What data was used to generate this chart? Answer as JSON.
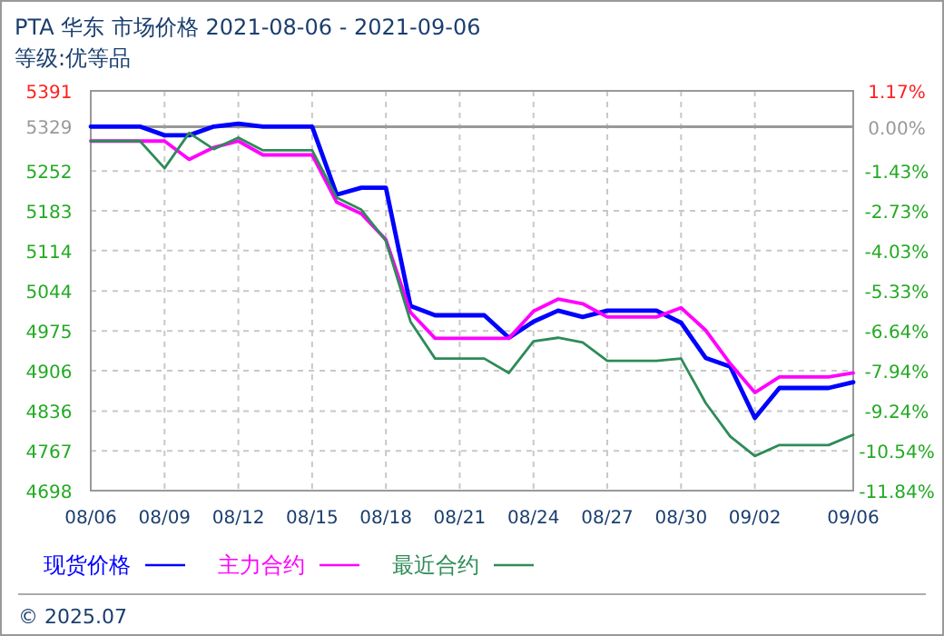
{
  "chart_data": {
    "type": "line",
    "title": "PTA 华东 市场价格 2021-08-06 - 2021-09-06",
    "subtitle": "等级:优等品",
    "annotations": [
      "© 2025.07"
    ],
    "x": [
      "2021-08-06",
      "2021-08-07",
      "2021-08-08",
      "2021-08-09",
      "2021-08-10",
      "2021-08-11",
      "2021-08-12",
      "2021-08-13",
      "2021-08-14",
      "2021-08-15",
      "2021-08-16",
      "2021-08-17",
      "2021-08-18",
      "2021-08-19",
      "2021-08-20",
      "2021-08-21",
      "2021-08-22",
      "2021-08-23",
      "2021-08-24",
      "2021-08-25",
      "2021-08-26",
      "2021-08-27",
      "2021-08-28",
      "2021-08-29",
      "2021-08-30",
      "2021-08-31",
      "2021-09-01",
      "2021-09-02",
      "2021-09-03",
      "2021-09-04",
      "2021-09-05",
      "2021-09-06"
    ],
    "series": [
      {
        "name": "现货价格",
        "color": "#0000ff",
        "values": [
          5329,
          5329,
          5329,
          5314,
          5314,
          5329,
          5334,
          5329,
          5329,
          5329,
          5211,
          5223,
          5223,
          5018,
          5002,
          5002,
          5002,
          4963,
          4991,
          5010,
          4999,
          5010,
          5010,
          5010,
          4989,
          4928,
          4913,
          4824,
          4876,
          4876,
          4876,
          4886
        ]
      },
      {
        "name": "主力合约",
        "color": "#ff00ff",
        "values": [
          5304,
          5304,
          5304,
          5304,
          5272,
          5293,
          5304,
          5280,
          5280,
          5280,
          5198,
          5178,
          5133,
          5007,
          4962,
          4962,
          4962,
          4962,
          5009,
          5030,
          5022,
          4999,
          4999,
          4999,
          5015,
          4976,
          4918,
          4868,
          4895,
          4895,
          4895,
          4902
        ]
      },
      {
        "name": "最近合约",
        "color": "#2e8b57",
        "values": [
          5304,
          5304,
          5304,
          5257,
          5318,
          5290,
          5310,
          5288,
          5288,
          5288,
          5206,
          5185,
          5131,
          4991,
          4927,
          4927,
          4927,
          4902,
          4957,
          4963,
          4955,
          4923,
          4923,
          4923,
          4927,
          4850,
          4792,
          4758,
          4777,
          4777,
          4777,
          4795
        ]
      }
    ],
    "xlim": [
      "2021-08-06",
      "2021-09-06"
    ],
    "xticks": [
      {
        "value": "2021-08-06",
        "label": "08/06"
      },
      {
        "value": "2021-08-09",
        "label": "08/09"
      },
      {
        "value": "2021-08-12",
        "label": "08/12"
      },
      {
        "value": "2021-08-15",
        "label": "08/15"
      },
      {
        "value": "2021-08-18",
        "label": "08/18"
      },
      {
        "value": "2021-08-21",
        "label": "08/21"
      },
      {
        "value": "2021-08-24",
        "label": "08/24"
      },
      {
        "value": "2021-08-27",
        "label": "08/27"
      },
      {
        "value": "2021-08-30",
        "label": "08/30"
      },
      {
        "value": "2021-09-02",
        "label": "09/02"
      },
      {
        "value": "2021-09-06",
        "label": "09/06"
      }
    ],
    "ylim": [
      4698,
      5391
    ],
    "yticks": [
      4698,
      4767,
      4836,
      4906,
      4975,
      5044,
      5114,
      5183,
      5252,
      5329,
      5391
    ],
    "y2lim": [
      -11.84,
      1.17
    ],
    "y2ticks": [
      {
        "value": -11.84,
        "label": "-11.84%"
      },
      {
        "value": -10.54,
        "label": "-10.54%"
      },
      {
        "value": -9.24,
        "label": "-9.24%"
      },
      {
        "value": -7.94,
        "label": "-7.94%"
      },
      {
        "value": -6.64,
        "label": "-6.64%"
      },
      {
        "value": -5.33,
        "label": "-5.33%"
      },
      {
        "value": -4.03,
        "label": "-4.03%"
      },
      {
        "value": -2.73,
        "label": "-2.73%"
      },
      {
        "value": -1.43,
        "label": "-1.43%"
      },
      {
        "value": 0,
        "label": "0.00%"
      },
      {
        "value": 1.17,
        "label": "1.17%"
      }
    ],
    "ref_lines": [
      {
        "axis": "y2",
        "value": 0,
        "color": "#999999",
        "line_style": "solid"
      }
    ],
    "grid": true,
    "legend": "bottom",
    "marker": "none",
    "line_style": "solid"
  }
}
